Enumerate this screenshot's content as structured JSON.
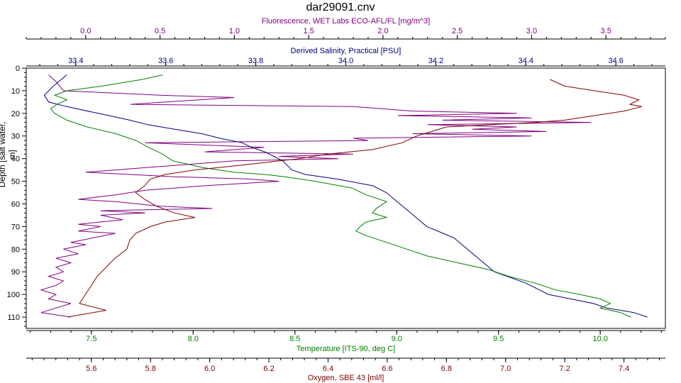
{
  "chart_data": {
    "type": "line",
    "title": "dar29091.cnv",
    "colors": {
      "fluorescence": "#800080",
      "salinity": "#000080",
      "temperature": "#008000",
      "oxygen": "#800000"
    },
    "axes": {
      "fluorescence": {
        "label": "Fluorescence, WET Labs ECO-AFL/FL [mg/m^3]",
        "range": [
          -0.4,
          3.9
        ],
        "ticks": [
          "0.0",
          "0.5",
          "1.0",
          "1.5",
          "2.0",
          "2.5",
          "3.0",
          "3.5"
        ],
        "position": "top"
      },
      "salinity": {
        "label": "Derived Salinity, Practical [PSU]",
        "range": [
          33.29,
          34.71
        ],
        "ticks": [
          "33.4",
          "33.6",
          "33.8",
          "34.0",
          "34.2",
          "34.4",
          "34.6"
        ],
        "position": "top"
      },
      "temperature": {
        "label": "Temperature [ITS-90, deg C]",
        "range": [
          7.18,
          10.32
        ],
        "ticks": [
          "7.5",
          "8.0",
          "8.5",
          "9.0",
          "9.5",
          "10.0"
        ],
        "position": "bottom"
      },
      "oxygen": {
        "label": "Oxygen, SBE 43 [ml/l]",
        "range": [
          5.38,
          7.54
        ],
        "ticks": [
          "5.6",
          "5.8",
          "6.0",
          "6.2",
          "6.4",
          "6.6",
          "6.8",
          "7.0",
          "7.2",
          "7.4"
        ],
        "position": "bottom"
      },
      "depth": {
        "label": "Depth [salt water, m]",
        "range": [
          0,
          115
        ],
        "ticks": [
          "0",
          "10",
          "20",
          "30",
          "40",
          "50",
          "60",
          "70",
          "80",
          "90",
          "100",
          "110"
        ],
        "inverted": true
      }
    },
    "series": [
      {
        "key": "fluorescence",
        "depth": [
          3,
          6,
          10,
          12,
          13,
          16,
          17,
          19,
          20,
          21,
          22,
          23,
          24,
          25,
          26,
          27,
          28,
          29,
          30,
          31,
          32,
          33,
          35,
          37,
          38,
          39,
          40,
          41,
          43,
          44,
          45,
          46,
          47,
          48,
          49,
          50,
          52,
          54,
          56,
          58,
          59,
          61,
          62,
          63,
          64,
          65,
          67,
          69,
          70,
          72,
          73,
          75,
          77,
          78,
          80,
          82,
          84,
          86,
          88,
          90,
          92,
          94,
          96,
          98,
          100,
          102,
          104,
          106,
          108,
          110
        ],
        "values": [
          -0.25,
          -0.2,
          -0.15,
          0.5,
          1.0,
          0.3,
          1.8,
          2.2,
          2.9,
          2.1,
          3.0,
          2.4,
          3.4,
          2.3,
          2.9,
          2.6,
          3.1,
          2.2,
          3.0,
          1.8,
          1.9,
          0.4,
          1.2,
          0.8,
          1.8,
          1.3,
          1.7,
          1.0,
          0.6,
          0.4,
          0.2,
          0.0,
          0.3,
          0.6,
          1.1,
          1.3,
          0.8,
          0.4,
          0.2,
          -0.05,
          0.2,
          0.5,
          0.85,
          0.1,
          0.4,
          0.1,
          0.25,
          -0.05,
          0.1,
          -0.05,
          0.2,
          0.05,
          -0.1,
          0.0,
          -0.15,
          -0.05,
          -0.2,
          -0.1,
          -0.2,
          -0.15,
          -0.25,
          -0.15,
          -0.2,
          -0.3,
          -0.2,
          -0.25,
          -0.1,
          -0.2,
          -0.3,
          -0.1
        ]
      },
      {
        "key": "salinity",
        "depth": [
          3,
          8,
          12,
          15,
          17,
          20,
          23,
          25,
          27,
          29,
          31,
          33,
          35,
          37,
          39,
          41,
          43,
          45,
          47,
          49,
          52,
          55,
          60,
          65,
          70,
          75,
          80,
          85,
          90,
          95,
          100,
          102,
          104,
          106,
          108,
          110
        ],
        "values": [
          33.38,
          33.35,
          33.33,
          33.34,
          33.38,
          33.45,
          33.52,
          33.56,
          33.62,
          33.68,
          33.72,
          33.77,
          33.79,
          33.82,
          33.84,
          33.86,
          33.87,
          33.88,
          33.91,
          33.98,
          34.06,
          34.09,
          34.12,
          34.15,
          34.18,
          34.24,
          34.27,
          34.3,
          34.33,
          34.4,
          34.45,
          34.5,
          34.55,
          34.58,
          34.64,
          34.67
        ]
      },
      {
        "key": "temperature",
        "depth": [
          3,
          5,
          8,
          10,
          12,
          14,
          16,
          18,
          20,
          23,
          26,
          29,
          32,
          35,
          38,
          41,
          44,
          46,
          47,
          48,
          50,
          53,
          56,
          59,
          62,
          64,
          66,
          68,
          70,
          72,
          74,
          77,
          80,
          83,
          86,
          89,
          92,
          95,
          98,
          100,
          102,
          104,
          106,
          108,
          110
        ],
        "values": [
          7.85,
          7.75,
          7.55,
          7.38,
          7.32,
          7.38,
          7.33,
          7.3,
          7.32,
          7.38,
          7.48,
          7.62,
          7.72,
          7.78,
          7.85,
          7.9,
          8.05,
          8.2,
          8.35,
          8.45,
          8.6,
          8.78,
          8.85,
          8.95,
          8.9,
          8.88,
          8.95,
          8.85,
          8.82,
          8.8,
          8.85,
          8.95,
          9.05,
          9.15,
          9.3,
          9.45,
          9.55,
          9.68,
          9.78,
          9.9,
          10.0,
          10.05,
          10.0,
          10.1,
          10.15
        ]
      },
      {
        "key": "oxygen",
        "depth": [
          5,
          8,
          12,
          14,
          16,
          17,
          19,
          21,
          23,
          24,
          25,
          26,
          28,
          30,
          33,
          36,
          38,
          40,
          43,
          45,
          47,
          49,
          52,
          55,
          58,
          61,
          64,
          66,
          68,
          70,
          73,
          76,
          80,
          84,
          88,
          92,
          96,
          100,
          104,
          107,
          110
        ],
        "values": [
          7.15,
          7.2,
          7.4,
          7.45,
          7.42,
          7.46,
          7.4,
          7.3,
          7.2,
          7.1,
          6.95,
          6.8,
          6.75,
          6.7,
          6.65,
          6.55,
          6.4,
          6.3,
          6.1,
          5.95,
          5.85,
          5.8,
          5.78,
          5.75,
          5.78,
          5.82,
          5.88,
          5.95,
          5.85,
          5.8,
          5.75,
          5.73,
          5.72,
          5.68,
          5.65,
          5.62,
          5.6,
          5.58,
          5.56,
          5.65,
          5.52
        ]
      }
    ]
  }
}
